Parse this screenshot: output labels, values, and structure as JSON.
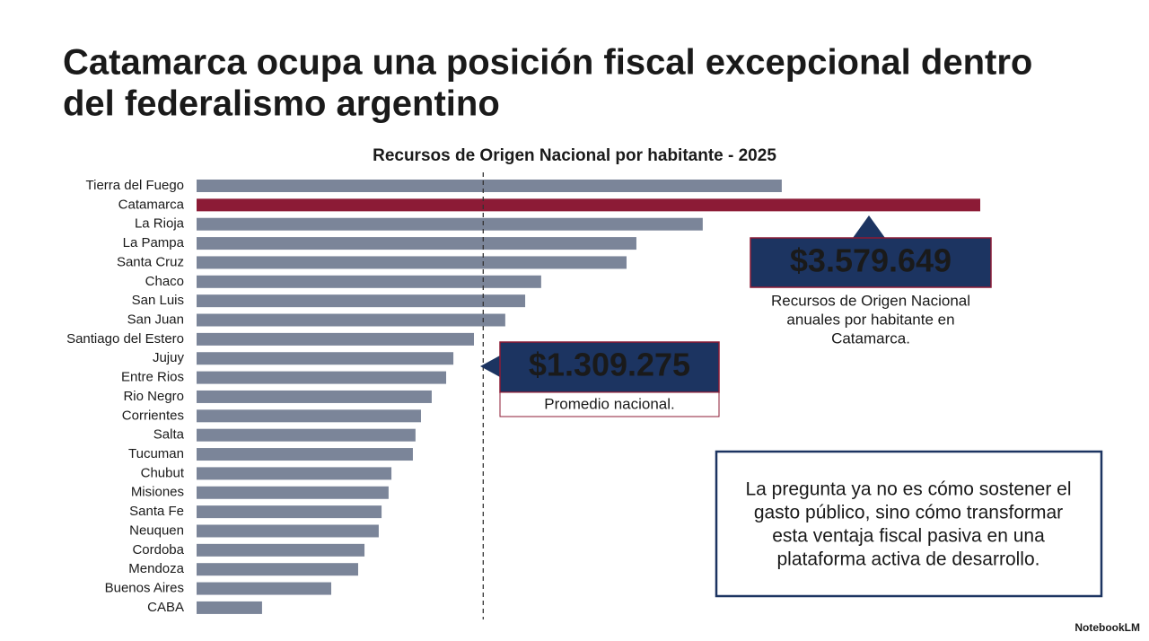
{
  "chart_data": {
    "type": "bar",
    "orientation": "horizontal",
    "slide_title": [
      "Catamarca ocupa una posición fiscal excepcional dentro",
      "del federalismo argentino"
    ],
    "title": "Recursos de Origen Nacional por habitante - 2025",
    "categories": [
      "Tierra del Fuego",
      "Catamarca",
      "La Rioja",
      "La Pampa",
      "Santa Cruz",
      "Chaco",
      "San Luis",
      "San Juan",
      "Santiago del Estero",
      "Jujuy",
      "Entre Rios",
      "Rio Negro",
      "Corrientes",
      "Salta",
      "Tucuman",
      "Chubut",
      "Misiones",
      "Santa Fe",
      "Neuquen",
      "Cordoba",
      "Mendoza",
      "Buenos Aires",
      "CABA"
    ],
    "values": [
      2673000,
      3579649,
      2312000,
      2009000,
      1964000,
      1574000,
      1501000,
      1410000,
      1267000,
      1173000,
      1140000,
      1074000,
      1025000,
      1000000,
      988000,
      890000,
      877000,
      845000,
      832000,
      767000,
      738000,
      615000,
      299000
    ],
    "color": "#7b8599",
    "highlight": {
      "category": "Catamarca",
      "color": "#8c1b36",
      "label": "$3.579.649",
      "text": [
        "Recursos de Origen Nacional",
        "anuales por habitante en",
        "Catamarca."
      ]
    },
    "reference_line": {
      "value": 1309275,
      "label": "$1.309.275",
      "text": "Promedio nacional."
    },
    "note": [
      "La pregunta ya no es cómo sostener el",
      "gasto público, sino cómo transformar",
      "esta ventaja fiscal pasiva en una",
      "plataforma activa de desarrollo."
    ],
    "brand": "NotebookLM"
  }
}
